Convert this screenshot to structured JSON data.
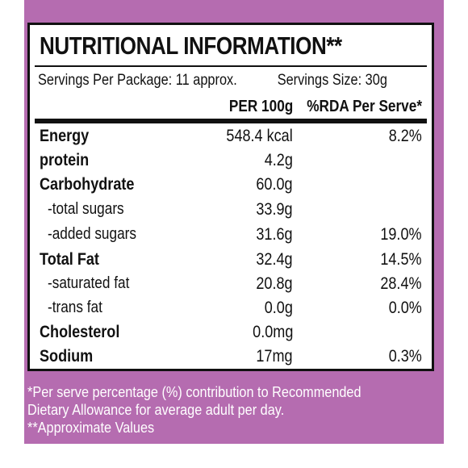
{
  "label": {
    "title": "NUTRITIONAL INFORMATION**",
    "servings_per_package": "Servings Per Package: 11 approx.",
    "serving_size": "Servings Size: 30g",
    "col_per100": "PER 100g",
    "col_rda": "%RDA Per Serve*",
    "rows": [
      {
        "name": "Energy",
        "per100": "548.4 kcal",
        "rda": "8.2%"
      },
      {
        "name": "protein",
        "per100": "4.2g",
        "rda": ""
      },
      {
        "name": "Carbohydrate",
        "per100": "60.0g",
        "rda": ""
      },
      {
        "name": "-total sugars",
        "per100": "33.9g",
        "rda": ""
      },
      {
        "name": "-added sugars",
        "per100": "31.6g",
        "rda": "19.0%"
      },
      {
        "name": "Total Fat",
        "per100": "32.4g",
        "rda": "14.5%"
      },
      {
        "name": "-saturated fat",
        "per100": "20.8g",
        "rda": "28.4%"
      },
      {
        "name": "-trans fat",
        "per100": "0.0g",
        "rda": "0.0%"
      },
      {
        "name": "Cholesterol",
        "per100": "0.0mg",
        "rda": ""
      },
      {
        "name": "Sodium",
        "per100": "17mg",
        "rda": "0.3%"
      }
    ]
  },
  "footnote": {
    "line1": "*Per serve percentage (%) contribution to Recommended",
    "line2": "Dietary Allowance for average adult per day.",
    "line3": "**Approximate Values"
  },
  "colors": {
    "background_purple": "#b56cb0",
    "label_white": "#ffffff",
    "text_black": "#111111"
  }
}
